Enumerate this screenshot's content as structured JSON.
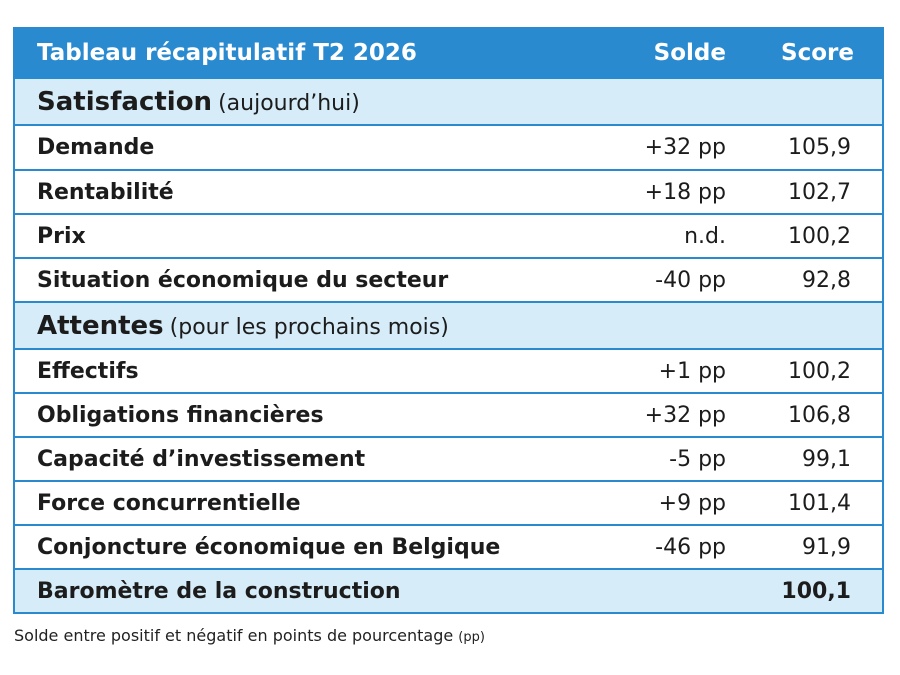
{
  "table": {
    "header": {
      "title": "Tableau récapitulatif T2 2026",
      "solde": "Solde",
      "score": "Score"
    },
    "sections": [
      {
        "title": "Satisfaction",
        "subtitle": "(aujourd’hui)",
        "rows": [
          {
            "label": "Demande",
            "solde": "+32 pp",
            "score": "105,9"
          },
          {
            "label": "Rentabilité",
            "solde": "+18 pp",
            "score": "102,7"
          },
          {
            "label": "Prix",
            "solde": "n.d.",
            "score": "100,2"
          },
          {
            "label": "Situation économique du secteur",
            "solde": "-40 pp",
            "score": "92,8"
          }
        ]
      },
      {
        "title": "Attentes",
        "subtitle": "(pour les prochains mois)",
        "rows": [
          {
            "label": "Effectifs",
            "solde": "+1 pp",
            "score": "100,2"
          },
          {
            "label": "Obligations financières",
            "solde": "+32 pp",
            "score": "106,8"
          },
          {
            "label": "Capacité d’investissement",
            "solde": "-5 pp",
            "score": "99,1"
          },
          {
            "label": "Force concurrentielle",
            "solde": "+9 pp",
            "score": "101,4"
          },
          {
            "label": "Conjoncture économique en Belgique",
            "solde": "-46 pp",
            "score": "91,9"
          }
        ]
      }
    ],
    "total": {
      "label": "Baromètre de la construction",
      "score": "100,1"
    }
  },
  "footnote": {
    "text": "Solde entre positif et négatif en points de pourcentage",
    "unit": "(pp)"
  },
  "colors": {
    "header_bg": "#2a8ad0",
    "section_bg": "#d6ecf8",
    "border": "#2a8ad0"
  }
}
